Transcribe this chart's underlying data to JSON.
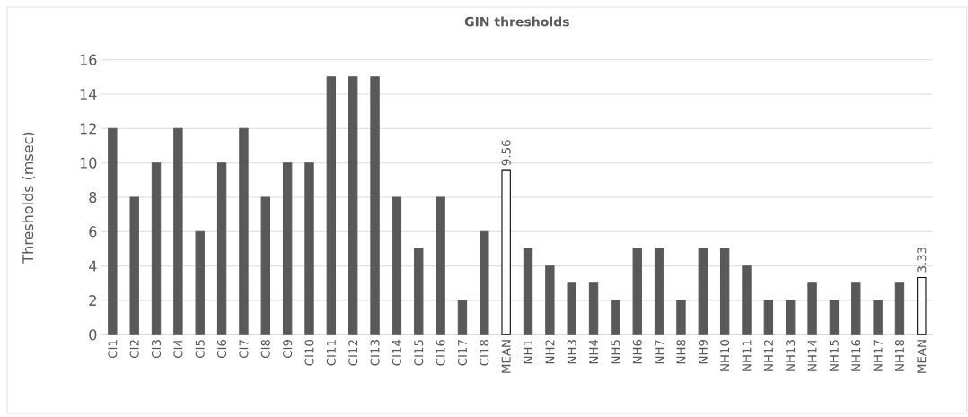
{
  "chart_data": {
    "type": "bar",
    "title": "GIN thresholds",
    "ylabel": "Thresholds (msec)",
    "categories": [
      "CI1",
      "CI2",
      "CI3",
      "CI4",
      "CI5",
      "CI6",
      "CI7",
      "CI8",
      "CI9",
      "CI10",
      "CI11",
      "CI12",
      "CI13",
      "CI14",
      "CI15",
      "CI16",
      "CI17",
      "CI18",
      "MEAN",
      "NH1",
      "NH2",
      "NH3",
      "NH4",
      "NH5",
      "NH6",
      "NH7",
      "NH8",
      "NH9",
      "NH10",
      "NH11",
      "NH12",
      "NH13",
      "NH14",
      "NH15",
      "NH16",
      "NH17",
      "NH18",
      "MEAN"
    ],
    "values": [
      12,
      8,
      10,
      12,
      6,
      10,
      12,
      8,
      10,
      10,
      15,
      15,
      15,
      8,
      5,
      8,
      2,
      6,
      9.56,
      5,
      4,
      3,
      3,
      2,
      5,
      5,
      2,
      5,
      5,
      4,
      2,
      2,
      3,
      2,
      3,
      2,
      3,
      3.33
    ],
    "value_labels": [
      null,
      null,
      null,
      null,
      null,
      null,
      null,
      null,
      null,
      null,
      null,
      null,
      null,
      null,
      null,
      null,
      null,
      null,
      "9.56",
      null,
      null,
      null,
      null,
      null,
      null,
      null,
      null,
      null,
      null,
      null,
      null,
      null,
      null,
      null,
      null,
      null,
      null,
      "3.33"
    ],
    "colors": [
      "#595959",
      "#595959",
      "#595959",
      "#595959",
      "#595959",
      "#595959",
      "#595959",
      "#595959",
      "#595959",
      "#595959",
      "#595959",
      "#595959",
      "#595959",
      "#595959",
      "#595959",
      "#595959",
      "#595959",
      "#595959",
      "#ffffff",
      "#595959",
      "#595959",
      "#595959",
      "#595959",
      "#595959",
      "#595959",
      "#595959",
      "#595959",
      "#595959",
      "#595959",
      "#595959",
      "#595959",
      "#595959",
      "#595959",
      "#595959",
      "#595959",
      "#595959",
      "#595959",
      "#ffffff"
    ],
    "ylim": [
      0,
      16
    ],
    "yticks": [
      0,
      2,
      4,
      6,
      8,
      10,
      12,
      14,
      16
    ],
    "grid": "y"
  }
}
